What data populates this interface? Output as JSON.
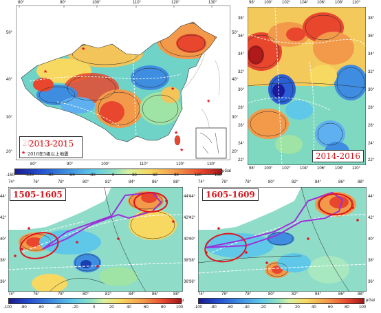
{
  "panel_tl": {
    "title": "2013-2015",
    "legend": "2016年5级以上地震",
    "top_lon_ticks": [
      "80°",
      "90°",
      "100°",
      "110°",
      "120°",
      "130°"
    ],
    "bottom_lon_ticks": [
      "80°",
      "90°",
      "100°",
      "110°",
      "120°",
      "130°"
    ],
    "lat_ticks_left": [
      "50°",
      "40°",
      "30°",
      "20°"
    ],
    "lat_ticks_right": [
      "50°",
      "40°",
      "30°",
      "20°"
    ]
  },
  "panel_tr": {
    "title": "2014-2016",
    "top_lon_ticks": [
      "98°",
      "100°",
      "102°",
      "104°",
      "106°",
      "108°",
      "110°"
    ],
    "bottom_lon_ticks": [
      "98°",
      "100°",
      "102°",
      "104°",
      "106°",
      "108°",
      "110°"
    ],
    "lat_ticks_left": [
      "38°",
      "36°",
      "34°",
      "32°",
      "30°",
      "28°",
      "26°",
      "24°",
      "22°"
    ],
    "lat_ticks_right": [
      "38°",
      "36°",
      "34°",
      "32°",
      "30°",
      "28°",
      "26°",
      "24°",
      "22°"
    ]
  },
  "colorbar_top": {
    "ticks": [
      "-150",
      "-120",
      "-90",
      "-60",
      "-30",
      "0",
      "30",
      "60",
      "90",
      "120",
      "150"
    ],
    "unit": "μGal"
  },
  "panel_bl": {
    "title": "1505-1605",
    "top_lon_ticks": [
      "74°",
      "76°",
      "78°",
      "80°",
      "82°",
      "84°",
      "86°",
      "88°"
    ],
    "bottom_lon_ticks": [
      "74°",
      "76°",
      "78°",
      "80°",
      "82°",
      "84°",
      "86°",
      "88°"
    ],
    "lat_ticks_left": [
      "44°",
      "42°",
      "40°",
      "38°",
      "36°"
    ],
    "lat_ticks_right": [
      "44°",
      "42°",
      "40°",
      "38°",
      "36°"
    ]
  },
  "panel_br": {
    "title": "1605-1609",
    "top_lon_ticks": [
      "74°",
      "76°",
      "78°",
      "80°",
      "82°",
      "84°",
      "86°",
      "88°"
    ],
    "bottom_lon_ticks": [
      "74°",
      "76°",
      "78°",
      "80°",
      "82°",
      "84°",
      "86°",
      "88°"
    ],
    "lat_ticks_left": [
      "44°",
      "42°",
      "40°",
      "38°",
      "36°"
    ],
    "lat_ticks_right": [
      "44°",
      "42°",
      "40°",
      "38°",
      "36°"
    ]
  },
  "colorbar_bl": {
    "ticks": [
      "-100",
      "-80",
      "-60",
      "-40",
      "-20",
      "0",
      "20",
      "40",
      "60",
      "80",
      "100"
    ],
    "unit": "μ"
  },
  "colorbar_br": {
    "ticks": [
      "-100",
      "-80",
      "-60",
      "-40",
      "-20",
      "0",
      "20",
      "40",
      "60",
      "80",
      "100"
    ],
    "unit": "μGal"
  },
  "colors": {
    "red_label": "#d4141c",
    "ellipse_red": "#e0141c",
    "ellipse_purple": "#9b30d9",
    "fault": "#ffffff"
  }
}
